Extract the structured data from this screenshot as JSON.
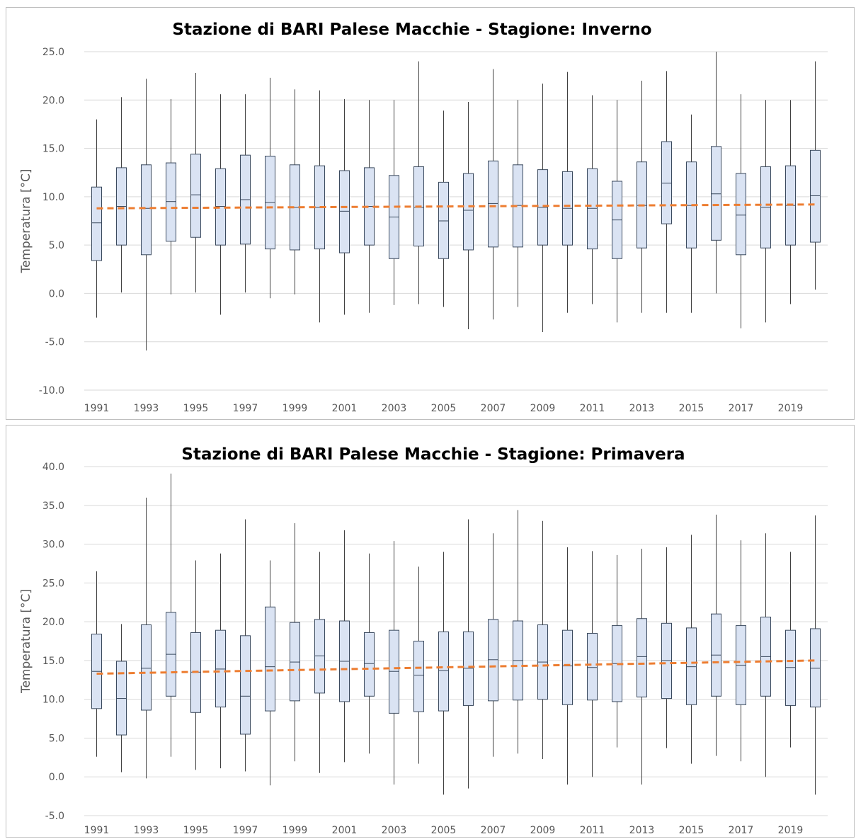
{
  "chart_data": [
    {
      "type": "boxplot",
      "title": "Stazione di BARI Palese Macchie - Stagione: Inverno",
      "xlabel": "",
      "ylabel": "Temperatura [°C]",
      "ylim": [
        -10,
        25
      ],
      "ytick_step": 5,
      "ytick_labels": [
        "-10.0",
        "-5.0",
        "0.0",
        "5.0",
        "10.0",
        "15.0",
        "20.0",
        "25.0"
      ],
      "years": [
        1991,
        1992,
        1993,
        1994,
        1995,
        1996,
        1997,
        1998,
        1999,
        2000,
        2001,
        2002,
        2003,
        2004,
        2005,
        2006,
        2007,
        2008,
        2009,
        2010,
        2011,
        2012,
        2013,
        2014,
        2015,
        2016,
        2017,
        2018,
        2019,
        2020
      ],
      "xtick_labels": [
        "1991",
        "1993",
        "1995",
        "1997",
        "1999",
        "2001",
        "2003",
        "2005",
        "2007",
        "2009",
        "2011",
        "2013",
        "2015",
        "2017",
        "2019"
      ],
      "min": [
        -2.5,
        0.1,
        -5.9,
        -0.1,
        0.1,
        -2.2,
        0.1,
        -0.5,
        -0.1,
        -3.0,
        -2.2,
        -2.0,
        -1.2,
        -1.1,
        -1.4,
        -3.7,
        -2.7,
        -1.4,
        -4.0,
        -2.0,
        -1.1,
        -3.0,
        -2.0,
        -2.0,
        -2.0,
        0.0,
        -3.6,
        -3.0,
        -1.1,
        0.4
      ],
      "q1": [
        3.4,
        5.0,
        4.0,
        5.4,
        5.8,
        5.0,
        5.1,
        4.6,
        4.5,
        4.6,
        4.2,
        5.0,
        3.6,
        4.9,
        3.6,
        4.5,
        4.8,
        4.8,
        5.0,
        5.0,
        4.6,
        3.6,
        4.7,
        7.2,
        4.7,
        5.5,
        4.0,
        4.7,
        5.0,
        5.3
      ],
      "median": [
        7.3,
        9.0,
        8.8,
        9.5,
        10.2,
        9.0,
        9.7,
        9.4,
        8.9,
        8.9,
        8.5,
        9.0,
        7.9,
        8.9,
        7.5,
        8.6,
        9.3,
        9.1,
        8.9,
        8.8,
        8.8,
        7.6,
        9.1,
        11.4,
        9.1,
        10.3,
        8.1,
        8.9,
        9.1,
        10.1
      ],
      "q3": [
        11.0,
        13.0,
        13.3,
        13.5,
        14.4,
        12.9,
        14.3,
        14.2,
        13.3,
        13.2,
        12.7,
        13.0,
        12.2,
        13.1,
        11.5,
        12.4,
        13.7,
        13.3,
        12.8,
        12.6,
        12.9,
        11.6,
        13.6,
        15.7,
        13.6,
        15.2,
        12.4,
        13.1,
        13.2,
        14.8
      ],
      "max": [
        18.0,
        20.3,
        22.2,
        20.1,
        22.8,
        20.6,
        20.6,
        22.3,
        21.1,
        21.0,
        20.1,
        20.0,
        20.0,
        24.0,
        18.9,
        19.8,
        23.2,
        20.0,
        21.7,
        22.9,
        20.5,
        20.0,
        22.0,
        23.0,
        18.5,
        25.0,
        20.6,
        20.0,
        20.0,
        24.0
      ],
      "trend": {
        "start": 8.8,
        "end": 9.2
      }
    },
    {
      "type": "boxplot",
      "title": "Stazione di BARI Palese Macchie - Stagione: Primavera",
      "xlabel": "",
      "ylabel": "Temperatura [°C]",
      "ylim": [
        -5,
        40
      ],
      "ytick_step": 5,
      "ytick_labels": [
        "-5.0",
        "0.0",
        "5.0",
        "10.0",
        "15.0",
        "20.0",
        "25.0",
        "30.0",
        "35.0",
        "40.0"
      ],
      "years": [
        1991,
        1992,
        1993,
        1994,
        1995,
        1996,
        1997,
        1998,
        1999,
        2000,
        2001,
        2002,
        2003,
        2004,
        2005,
        2006,
        2007,
        2008,
        2009,
        2010,
        2011,
        2012,
        2013,
        2014,
        2015,
        2016,
        2017,
        2018,
        2019,
        2020
      ],
      "xtick_labels": [
        "1991",
        "1993",
        "1995",
        "1997",
        "1999",
        "2001",
        "2003",
        "2005",
        "2007",
        "2009",
        "2011",
        "2013",
        "2015",
        "2017",
        "2019"
      ],
      "min": [
        2.6,
        0.6,
        -0.2,
        2.6,
        0.9,
        1.1,
        0.7,
        -1.1,
        2.0,
        0.5,
        1.9,
        3.0,
        -1.0,
        1.7,
        -2.3,
        -1.5,
        2.6,
        3.0,
        2.3,
        -1.0,
        0.0,
        3.8,
        -1.0,
        3.7,
        1.7,
        2.7,
        2.0,
        0.0,
        3.8,
        -2.3
      ],
      "q1": [
        8.8,
        5.4,
        8.6,
        10.4,
        8.3,
        9.0,
        5.5,
        8.5,
        9.8,
        10.8,
        9.7,
        10.4,
        8.2,
        8.4,
        8.5,
        9.2,
        9.8,
        9.9,
        10.0,
        9.3,
        9.9,
        9.7,
        10.3,
        10.1,
        9.3,
        10.4,
        9.3,
        10.4,
        9.2,
        9.0
      ],
      "median": [
        13.6,
        10.1,
        14.0,
        15.8,
        13.5,
        13.9,
        10.4,
        14.2,
        14.8,
        15.6,
        14.9,
        14.6,
        13.6,
        13.1,
        13.7,
        14.0,
        15.1,
        15.0,
        14.8,
        14.3,
        14.1,
        14.6,
        15.5,
        15.0,
        14.2,
        15.7,
        14.4,
        15.5,
        14.1,
        14.0
      ],
      "q3": [
        18.4,
        14.9,
        19.6,
        21.2,
        18.6,
        18.9,
        18.2,
        21.9,
        19.9,
        20.3,
        20.1,
        18.6,
        18.9,
        17.5,
        18.7,
        18.7,
        20.3,
        20.1,
        19.6,
        18.9,
        18.5,
        19.5,
        20.4,
        19.8,
        19.2,
        21.0,
        19.5,
        20.6,
        18.9,
        19.1
      ],
      "max": [
        26.5,
        19.7,
        36.0,
        39.1,
        27.9,
        28.8,
        33.2,
        27.9,
        32.7,
        29.0,
        31.8,
        28.8,
        30.4,
        27.1,
        29.0,
        33.2,
        31.4,
        34.4,
        33.0,
        29.6,
        29.1,
        28.6,
        29.4,
        29.6,
        31.2,
        33.8,
        30.5,
        31.4,
        29.0,
        33.7
      ],
      "trend": {
        "start": 13.3,
        "end": 15.0
      }
    }
  ]
}
